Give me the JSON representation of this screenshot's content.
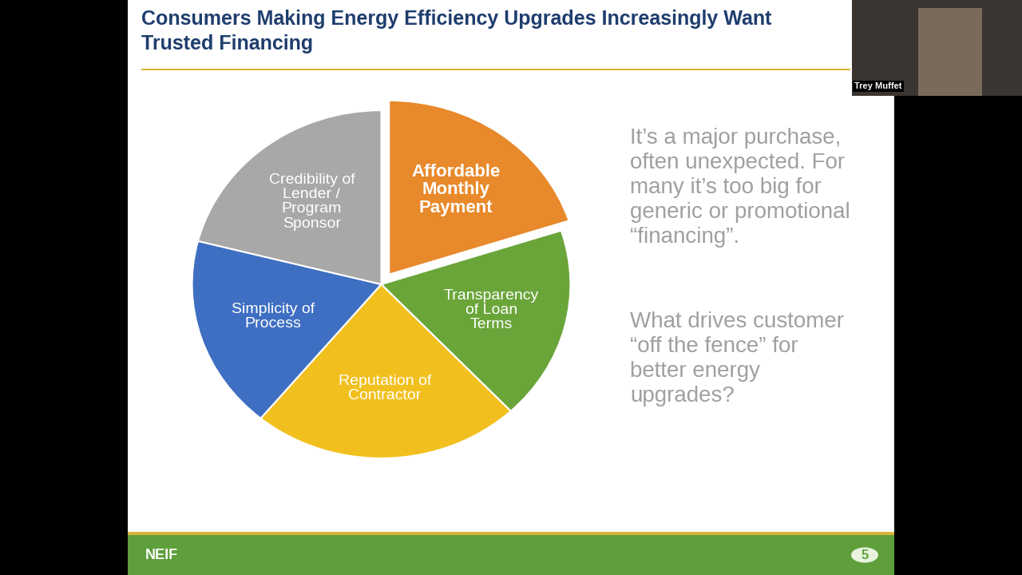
{
  "chart_data": {
    "type": "pie",
    "title": "Consumers Making Energy Efficiency Upgrades Increasingly Want\nTrusted Financing",
    "categories": [
      "Affordable\nMonthly\nPayment",
      "Transparency\nof Loan\nTerms",
      "Reputation of\nContractor",
      "Simplicity of\nProcess",
      "Credibility of\nLender /\nProgram\nSponsor"
    ],
    "values": [
      20,
      18,
      23,
      18,
      21
    ],
    "colors": [
      "#e8892b",
      "#6aa53a",
      "#f2c01e",
      "#3f6fc2",
      "#a8a8a8"
    ]
  },
  "slide": {
    "notes": [
      "It’s a major purchase,\noften unexpected. For\nmany it’s too big for\ngeneric or promotional\n“financing”.",
      "What drives customer\n“off the fence” for\nbetter energy\nupgrades?"
    ],
    "speaker": "Trey Muffet",
    "logo": "NEIF",
    "page": 5
  }
}
